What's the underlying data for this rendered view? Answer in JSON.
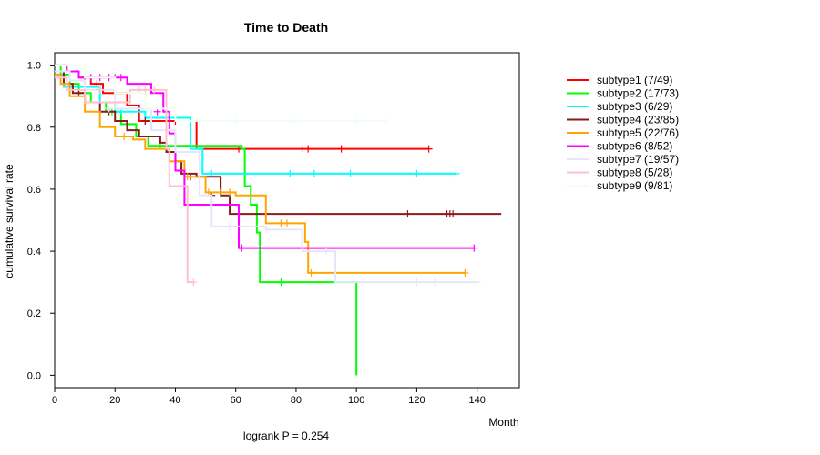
{
  "chart_data": {
    "type": "line",
    "subtype": "kaplan-meier",
    "title": "Time to Death",
    "xlabel": "Month",
    "ylabel": "cumulative survival rate",
    "annotation": "logrank P = 0.254",
    "xlim": [
      0,
      154
    ],
    "ylim": [
      -0.04,
      1.04
    ],
    "x_ticks": [
      0,
      20,
      40,
      60,
      80,
      100,
      120,
      140
    ],
    "y_ticks": [
      0.0,
      0.2,
      0.4,
      0.6,
      0.8,
      1.0
    ],
    "y_tick_labels": [
      "0.0",
      "0.2",
      "0.4",
      "0.6",
      "0.8",
      "1.0"
    ],
    "legend_position": "top-right outside plot",
    "series": [
      {
        "name": "subtype1 (7/49)",
        "color": "#ff0000",
        "steps": [
          [
            0,
            1.0
          ],
          [
            4,
            0.98
          ],
          [
            8,
            0.96
          ],
          [
            12,
            0.94
          ],
          [
            16,
            0.91
          ],
          [
            24,
            0.87
          ],
          [
            28,
            0.82
          ],
          [
            47,
            0.73
          ],
          [
            124,
            0.73
          ]
        ],
        "censor": [
          [
            14,
            0.94
          ],
          [
            20,
            0.91
          ],
          [
            30,
            0.82
          ],
          [
            40,
            0.82
          ],
          [
            61,
            0.73
          ],
          [
            82,
            0.73
          ],
          [
            84,
            0.73
          ],
          [
            95,
            0.73
          ],
          [
            124,
            0.73
          ]
        ]
      },
      {
        "name": "subtype2 (17/73)",
        "color": "#00ff00",
        "steps": [
          [
            0,
            1.0
          ],
          [
            2,
            0.97
          ],
          [
            5,
            0.94
          ],
          [
            8,
            0.91
          ],
          [
            12,
            0.88
          ],
          [
            17,
            0.85
          ],
          [
            22,
            0.81
          ],
          [
            27,
            0.77
          ],
          [
            31,
            0.74
          ],
          [
            62,
            0.73
          ],
          [
            63,
            0.61
          ],
          [
            65,
            0.55
          ],
          [
            67,
            0.46
          ],
          [
            68,
            0.3
          ],
          [
            100,
            0.3
          ],
          [
            100,
            0.0
          ]
        ],
        "censor": [
          [
            19,
            0.85
          ],
          [
            21,
            0.85
          ],
          [
            35,
            0.74
          ],
          [
            40,
            0.74
          ],
          [
            45,
            0.74
          ],
          [
            75,
            0.3
          ]
        ]
      },
      {
        "name": "subtype3 (6/29)",
        "color": "#00ffff",
        "steps": [
          [
            0,
            0.97
          ],
          [
            3,
            0.93
          ],
          [
            15,
            0.88
          ],
          [
            20,
            0.85
          ],
          [
            30,
            0.83
          ],
          [
            45,
            0.73
          ],
          [
            49,
            0.65
          ],
          [
            133,
            0.65
          ]
        ],
        "censor": [
          [
            22,
            0.85
          ],
          [
            40,
            0.83
          ],
          [
            52,
            0.65
          ],
          [
            78,
            0.65
          ],
          [
            86,
            0.65
          ],
          [
            98,
            0.65
          ],
          [
            120,
            0.65
          ],
          [
            133,
            0.65
          ]
        ]
      },
      {
        "name": "subtype4 (23/85)",
        "color": "#8b1a1a",
        "steps": [
          [
            0,
            0.98
          ],
          [
            3,
            0.94
          ],
          [
            6,
            0.91
          ],
          [
            10,
            0.88
          ],
          [
            15,
            0.85
          ],
          [
            20,
            0.82
          ],
          [
            24,
            0.79
          ],
          [
            28,
            0.77
          ],
          [
            35,
            0.75
          ],
          [
            37,
            0.72
          ],
          [
            40,
            0.69
          ],
          [
            42,
            0.65
          ],
          [
            47,
            0.64
          ],
          [
            55,
            0.58
          ],
          [
            58,
            0.52
          ],
          [
            148,
            0.52
          ]
        ],
        "censor": [
          [
            8,
            0.91
          ],
          [
            18,
            0.85
          ],
          [
            30,
            0.82
          ],
          [
            45,
            0.64
          ],
          [
            52,
            0.58
          ],
          [
            117,
            0.52
          ],
          [
            130,
            0.52
          ],
          [
            131,
            0.52
          ],
          [
            132,
            0.52
          ]
        ]
      },
      {
        "name": "subtype5 (22/76)",
        "color": "#ffa500",
        "steps": [
          [
            0,
            0.97
          ],
          [
            2,
            0.94
          ],
          [
            5,
            0.9
          ],
          [
            10,
            0.85
          ],
          [
            15,
            0.8
          ],
          [
            20,
            0.77
          ],
          [
            26,
            0.76
          ],
          [
            30,
            0.73
          ],
          [
            38,
            0.69
          ],
          [
            43,
            0.64
          ],
          [
            50,
            0.59
          ],
          [
            60,
            0.58
          ],
          [
            70,
            0.49
          ],
          [
            83,
            0.43
          ],
          [
            84,
            0.33
          ],
          [
            136,
            0.33
          ]
        ],
        "censor": [
          [
            23,
            0.77
          ],
          [
            44,
            0.64
          ],
          [
            51,
            0.59
          ],
          [
            55,
            0.59
          ],
          [
            58,
            0.59
          ],
          [
            75,
            0.49
          ],
          [
            77,
            0.49
          ],
          [
            85,
            0.33
          ],
          [
            136,
            0.33
          ]
        ]
      },
      {
        "name": "subtype6 (8/52)",
        "color": "#ff00ff",
        "steps": [
          [
            0,
            1.0
          ],
          [
            4,
            0.98
          ],
          [
            8,
            0.96
          ],
          [
            24,
            0.94
          ],
          [
            32,
            0.91
          ],
          [
            36,
            0.85
          ],
          [
            38,
            0.78
          ],
          [
            40,
            0.66
          ],
          [
            43,
            0.55
          ],
          [
            61,
            0.41
          ],
          [
            139,
            0.41
          ]
        ],
        "censor": [
          [
            10,
            0.96
          ],
          [
            12,
            0.96
          ],
          [
            15,
            0.96
          ],
          [
            18,
            0.96
          ],
          [
            20,
            0.96
          ],
          [
            22,
            0.96
          ],
          [
            34,
            0.85
          ],
          [
            62,
            0.41
          ],
          [
            139,
            0.41
          ]
        ]
      },
      {
        "name": "subtype7 (19/57)",
        "color": "#e6e6fa",
        "steps": [
          [
            0,
            0.98
          ],
          [
            5,
            0.95
          ],
          [
            10,
            0.92
          ],
          [
            20,
            0.86
          ],
          [
            32,
            0.79
          ],
          [
            40,
            0.72
          ],
          [
            48,
            0.58
          ],
          [
            52,
            0.48
          ],
          [
            70,
            0.47
          ],
          [
            82,
            0.4
          ],
          [
            93,
            0.3
          ],
          [
            140,
            0.3
          ]
        ],
        "censor": [
          [
            18,
            0.86
          ],
          [
            58,
            0.48
          ],
          [
            90,
            0.4
          ],
          [
            120,
            0.3
          ],
          [
            126,
            0.3
          ],
          [
            140,
            0.3
          ]
        ]
      },
      {
        "name": "subtype8 (5/28)",
        "color": "#ffc0cb",
        "steps": [
          [
            0,
            0.96
          ],
          [
            4,
            0.92
          ],
          [
            10,
            0.88
          ],
          [
            20,
            0.88
          ],
          [
            25,
            0.92
          ],
          [
            36,
            0.92
          ],
          [
            37,
            0.73
          ],
          [
            38,
            0.61
          ],
          [
            44,
            0.3
          ],
          [
            46,
            0.3
          ]
        ],
        "censor": [
          [
            15,
            0.92
          ],
          [
            28,
            0.92
          ],
          [
            30,
            0.92
          ],
          [
            33,
            0.92
          ],
          [
            46,
            0.3
          ]
        ]
      },
      {
        "name": "subtype9 (9/81)",
        "color": "#f0fff0",
        "steps": [
          [
            0,
            1.0
          ],
          [
            10,
            0.96
          ],
          [
            20,
            0.91
          ],
          [
            30,
            0.86
          ],
          [
            40,
            0.82
          ],
          [
            110,
            0.82
          ]
        ],
        "censor": [
          [
            60,
            0.82
          ],
          [
            80,
            0.82
          ],
          [
            100,
            0.82
          ],
          [
            110,
            0.82
          ]
        ]
      }
    ]
  }
}
